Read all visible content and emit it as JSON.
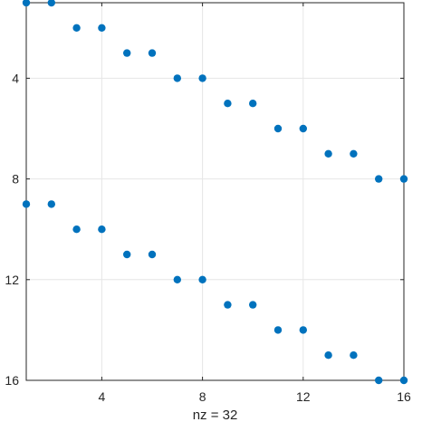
{
  "chart_data": {
    "type": "scatter",
    "title": "",
    "xlabel": "nz = 32",
    "ylabel": "",
    "xlim": [
      1,
      16
    ],
    "ylim": [
      1,
      16
    ],
    "y_reversed": true,
    "grid": true,
    "marker_color": "#0072BD",
    "x_ticks": [
      4,
      8,
      12,
      16
    ],
    "y_ticks": [
      4,
      8,
      12,
      16
    ],
    "points": [
      {
        "x": 1,
        "y": 1
      },
      {
        "x": 2,
        "y": 1
      },
      {
        "x": 3,
        "y": 2
      },
      {
        "x": 4,
        "y": 2
      },
      {
        "x": 5,
        "y": 3
      },
      {
        "x": 6,
        "y": 3
      },
      {
        "x": 7,
        "y": 4
      },
      {
        "x": 8,
        "y": 4
      },
      {
        "x": 9,
        "y": 5
      },
      {
        "x": 10,
        "y": 5
      },
      {
        "x": 11,
        "y": 6
      },
      {
        "x": 12,
        "y": 6
      },
      {
        "x": 13,
        "y": 7
      },
      {
        "x": 14,
        "y": 7
      },
      {
        "x": 15,
        "y": 8
      },
      {
        "x": 16,
        "y": 8
      },
      {
        "x": 1,
        "y": 9
      },
      {
        "x": 2,
        "y": 9
      },
      {
        "x": 3,
        "y": 10
      },
      {
        "x": 4,
        "y": 10
      },
      {
        "x": 5,
        "y": 11
      },
      {
        "x": 6,
        "y": 11
      },
      {
        "x": 7,
        "y": 12
      },
      {
        "x": 8,
        "y": 12
      },
      {
        "x": 9,
        "y": 13
      },
      {
        "x": 10,
        "y": 13
      },
      {
        "x": 11,
        "y": 14
      },
      {
        "x": 12,
        "y": 14
      },
      {
        "x": 13,
        "y": 15
      },
      {
        "x": 14,
        "y": 15
      },
      {
        "x": 15,
        "y": 16
      },
      {
        "x": 16,
        "y": 16
      }
    ]
  }
}
